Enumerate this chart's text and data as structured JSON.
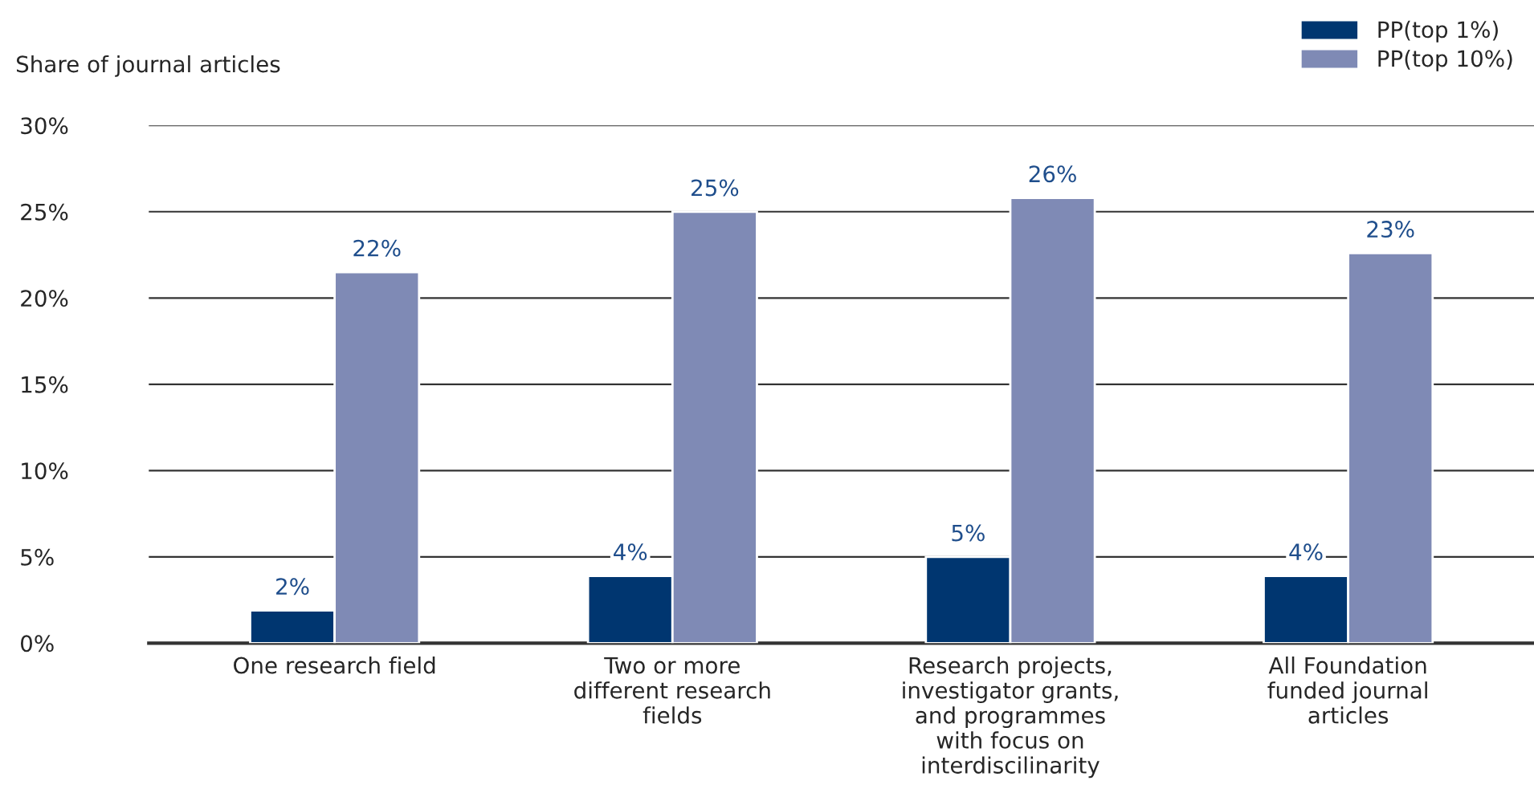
{
  "chart_data": {
    "type": "bar",
    "ylabel": "Share of journal articles",
    "categories": [
      "One research field",
      "Two or more\ndifferent research\nfields",
      "Research projects,\ninvestigator grants,\nand programmes\nwith focus on\ninterdiscilinarity",
      "All Foundation\nfunded journal\narticles"
    ],
    "series": [
      {
        "name": "PP(top 1%)",
        "color": "#003670",
        "values": [
          1.9,
          3.9,
          5.0,
          3.9
        ],
        "value_labels": [
          "2%",
          "4%",
          "5%",
          "4%"
        ]
      },
      {
        "name": "PP(top 10%)",
        "color": "#7f8ab5",
        "values": [
          21.5,
          25.0,
          25.8,
          22.6
        ],
        "value_labels": [
          "22%",
          "25%",
          "26%",
          "23%"
        ]
      }
    ],
    "ylim": [
      0,
      30
    ],
    "yticks": [
      {
        "value": 0,
        "label": "0%"
      },
      {
        "value": 5,
        "label": "5%"
      },
      {
        "value": 10,
        "label": "10%"
      },
      {
        "value": 15,
        "label": "15%"
      },
      {
        "value": 20,
        "label": "20%"
      },
      {
        "value": 25,
        "label": "25%"
      },
      {
        "value": 30,
        "label": "30%"
      }
    ],
    "grid": "y",
    "legend": "top right"
  }
}
